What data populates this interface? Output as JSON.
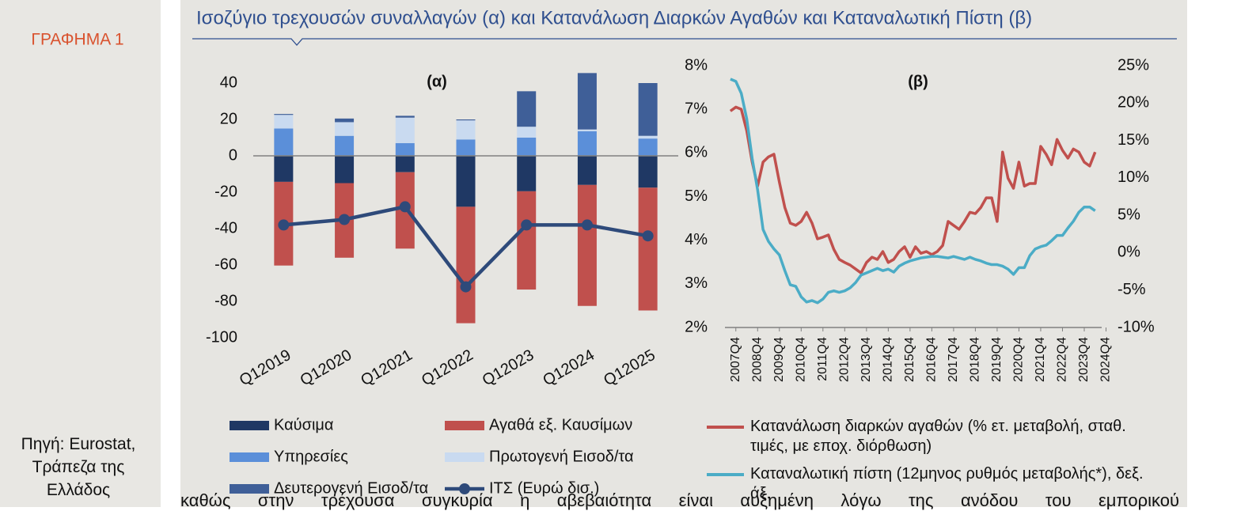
{
  "sidebar": {
    "label": "ΓΡΑΦΗΜΑ 1",
    "source": "Πηγή: Eurostat, Τράπεζα της Ελλάδος"
  },
  "title": "Ισοζύγιο τρεχουσών συναλλαγών (α) και Κατανάλωση Διαρκών Αγαθών και Καταναλωτική Πίστη (β)",
  "chart_data": [
    {
      "type": "bar",
      "stacked": true,
      "title": "(α)",
      "categories": [
        "Q12019",
        "Q12020",
        "Q12021",
        "Q12022",
        "Q12023",
        "Q12024",
        "Q12025"
      ],
      "ylim": [
        -100,
        40
      ],
      "yticks": [
        -100,
        -80,
        -60,
        -40,
        -20,
        0,
        20,
        40
      ],
      "series": [
        {
          "name": "Καύσιμα",
          "color": "#1f3864",
          "values": [
            -14.3,
            -15,
            -9,
            -28,
            -19.5,
            -16,
            -17.5
          ]
        },
        {
          "name": "Αγαθά εξ. Καυσίμων",
          "color": "#c0504d",
          "values": [
            -46,
            -41,
            -42,
            -64,
            -54,
            -66.5,
            -67.5
          ]
        },
        {
          "name": "Υπηρεσίες",
          "color": "#5b8fd9",
          "values": [
            15,
            11,
            7,
            9,
            10,
            13.5,
            9.5
          ]
        },
        {
          "name": "Πρωτογενή Εισοδ/τα",
          "color": "#c9daf0",
          "values": [
            7.5,
            7.5,
            14,
            10.5,
            6,
            1,
            1.5
          ]
        },
        {
          "name": "Δευτερογενή Εισοδ/τα",
          "color": "#3f5f98",
          "values": [
            0.5,
            2,
            1,
            0.5,
            19.5,
            31,
            29
          ]
        },
        {
          "name": "ΙΤΣ (Ευρώ δισ.)",
          "color": "#2e4a7a",
          "kind": "line",
          "values": [
            -38,
            -35,
            -28,
            -72,
            -38,
            -38,
            -44
          ]
        }
      ]
    },
    {
      "type": "line",
      "title": "(β)",
      "x": [
        2007.5,
        2007.75,
        2008,
        2008.25,
        2008.5,
        2008.75,
        2009,
        2009.25,
        2009.5,
        2009.75,
        2010,
        2010.25,
        2010.5,
        2010.75,
        2011,
        2011.25,
        2011.5,
        2011.75,
        2012,
        2012.25,
        2012.5,
        2012.75,
        2013,
        2013.25,
        2013.5,
        2013.75,
        2014,
        2014.25,
        2014.5,
        2014.75,
        2015,
        2015.25,
        2015.5,
        2015.75,
        2016,
        2016.25,
        2016.5,
        2016.75,
        2017,
        2017.25,
        2017.5,
        2017.75,
        2018,
        2018.25,
        2018.5,
        2018.75,
        2019,
        2019.25,
        2019.5,
        2019.75,
        2020,
        2020.25,
        2020.5,
        2020.75,
        2021,
        2021.25,
        2021.5,
        2021.75,
        2022,
        2022.25,
        2022.5,
        2022.75,
        2023,
        2023.25,
        2023.5,
        2023.75,
        2024,
        2024.25
      ],
      "xlim": [
        2007.25,
        2024.55
      ],
      "xticks": [
        {
          "value": 2007.75,
          "label": "2007Q4"
        },
        {
          "value": 2008.75,
          "label": "2008Q4"
        },
        {
          "value": 2009.75,
          "label": "2009Q4"
        },
        {
          "value": 2010.75,
          "label": "2010Q4"
        },
        {
          "value": 2011.75,
          "label": "2011Q4"
        },
        {
          "value": 2012.75,
          "label": "2012Q4"
        },
        {
          "value": 2013.75,
          "label": "2013Q4"
        },
        {
          "value": 2014.75,
          "label": "2014Q4"
        },
        {
          "value": 2015.75,
          "label": "2015Q4"
        },
        {
          "value": 2016.75,
          "label": "2016Q4"
        },
        {
          "value": 2017.75,
          "label": "2017Q4"
        },
        {
          "value": 2018.75,
          "label": "2018Q4"
        },
        {
          "value": 2019.75,
          "label": "2019Q4"
        },
        {
          "value": 2020.75,
          "label": "2020Q4"
        },
        {
          "value": 2021.75,
          "label": "2021Q4"
        },
        {
          "value": 2022.75,
          "label": "2022Q4"
        },
        {
          "value": 2023.75,
          "label": "2023Q4"
        },
        {
          "value": 2024.75,
          "label": "2024Q4"
        }
      ],
      "ylim": [
        2,
        8
      ],
      "yticks": [
        {
          "value": 2,
          "label": "2%"
        },
        {
          "value": 3,
          "label": "3%"
        },
        {
          "value": 4,
          "label": "4%"
        },
        {
          "value": 5,
          "label": "5%"
        },
        {
          "value": 6,
          "label": "6%"
        },
        {
          "value": 7,
          "label": "7%"
        },
        {
          "value": 8,
          "label": "8%"
        }
      ],
      "y2lim": [
        -10,
        25
      ],
      "y2ticks": [
        {
          "value": -10,
          "label": "-10%"
        },
        {
          "value": -5,
          "label": "-5%"
        },
        {
          "value": 0,
          "label": "0%"
        },
        {
          "value": 5,
          "label": "5%"
        },
        {
          "value": 10,
          "label": "10%"
        },
        {
          "value": 15,
          "label": "15%"
        },
        {
          "value": 20,
          "label": "20%"
        },
        {
          "value": 25,
          "label": "25%"
        }
      ],
      "series": [
        {
          "name": "Κατανάλωση διαρκών αγαθών (% ετ. μεταβολή, σταθ. τιμές, με εποχ. διόρθωση)",
          "color": "#c0504d",
          "values": [
            6.96,
            7.05,
            7.0,
            6.51,
            5.79,
            5.24,
            5.79,
            5.91,
            5.97,
            5.33,
            4.75,
            4.39,
            4.34,
            4.43,
            4.64,
            4.39,
            4.03,
            4.07,
            4.12,
            3.79,
            3.56,
            3.49,
            3.43,
            3.34,
            3.25,
            3.49,
            3.61,
            3.56,
            3.74,
            3.49,
            3.56,
            3.74,
            3.85,
            3.61,
            3.85,
            3.7,
            3.74,
            3.67,
            3.74,
            3.88,
            4.43,
            4.34,
            4.25,
            4.43,
            4.64,
            4.61,
            4.75,
            4.97,
            4.97,
            4.43,
            6.02,
            5.42,
            5.19,
            5.79,
            5.24,
            5.3,
            5.3,
            6.15,
            5.97,
            5.73,
            6.31,
            6.06,
            5.88,
            6.09,
            6.02,
            5.79,
            5.7,
            6.02
          ]
        },
        {
          "name": "Καταναλωτική πίστη (12μηνος ρυθμός μεταβολής*), δεξ. άξ.",
          "color": "#4bacc6",
          "axis": "y2",
          "values": [
            23.2,
            22.9,
            21.3,
            17.9,
            12.6,
            8.4,
            3.1,
            1.5,
            0.5,
            -0.3,
            -2.4,
            -4.3,
            -4.5,
            -5.9,
            -6.6,
            -6.4,
            -6.7,
            -6.2,
            -5.3,
            -5.1,
            -5.3,
            -5.1,
            -4.7,
            -4.0,
            -3.0,
            -2.7,
            -2.4,
            -2.1,
            -2.4,
            -2.2,
            -2.6,
            -1.8,
            -1.4,
            -1.1,
            -0.9,
            -0.7,
            -0.6,
            -0.5,
            -0.5,
            -0.6,
            -0.7,
            -0.5,
            -0.7,
            -0.9,
            -0.6,
            -0.9,
            -1.1,
            -1.4,
            -1.6,
            -1.6,
            -1.8,
            -2.2,
            -2.9,
            -2.0,
            -2.0,
            -0.4,
            0.5,
            0.8,
            1.0,
            1.6,
            2.3,
            2.3,
            3.3,
            4.2,
            5.4,
            6.1,
            6.1,
            5.6
          ]
        }
      ]
    }
  ],
  "body_text": "καθώς στην τρέχουσα συγκυρία η αβεβαιότητα είναι αυξημένη λόγω της ανόδου του εμπορικού"
}
